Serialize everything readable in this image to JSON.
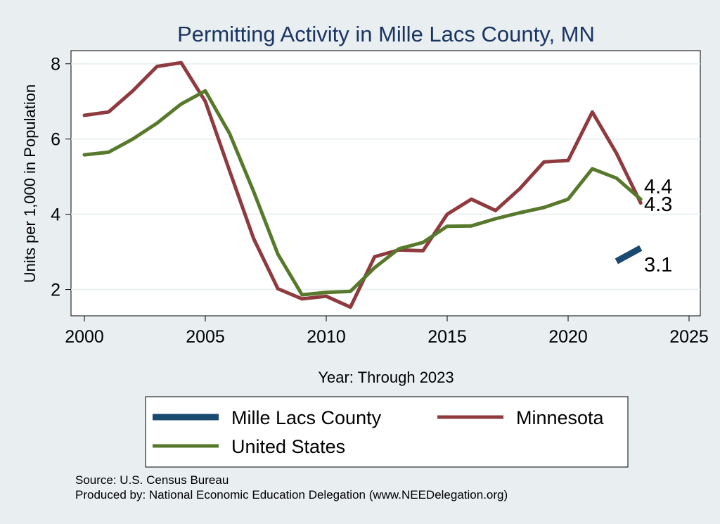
{
  "chart_data": {
    "type": "line",
    "title": "Permitting Activity in Mille Lacs County, MN",
    "xlabel": "Year: Through 2023",
    "ylabel": "Units per 1,000 in Population",
    "xlim": [
      2000,
      2025
    ],
    "ylim": [
      1.3,
      8.35
    ],
    "xticks": [
      "2000",
      "2005",
      "2010",
      "2015",
      "2020",
      "2025"
    ],
    "yticks": [
      "2",
      "4",
      "6",
      "8"
    ],
    "grid": true,
    "legend_position": "bottom",
    "series": [
      {
        "name": "Mille Lacs County",
        "color": "#1a4a72",
        "x": [
          2022,
          2023
        ],
        "values": [
          2.75,
          3.1
        ],
        "end_label": "3.1"
      },
      {
        "name": "Minnesota",
        "color": "#8f3a3e",
        "x": [
          2000,
          2001,
          2002,
          2003,
          2004,
          2005,
          2006,
          2007,
          2008,
          2009,
          2010,
          2011,
          2012,
          2013,
          2014,
          2015,
          2016,
          2017,
          2018,
          2019,
          2020,
          2021,
          2022,
          2023
        ],
        "values": [
          6.63,
          6.72,
          7.28,
          7.93,
          8.03,
          7.0,
          5.16,
          3.35,
          2.02,
          1.75,
          1.82,
          1.53,
          2.87,
          3.05,
          3.03,
          4.0,
          4.4,
          4.1,
          4.68,
          5.39,
          5.43,
          6.72,
          5.62,
          4.3
        ],
        "end_label": "4.3"
      },
      {
        "name": "United States",
        "color": "#57792c",
        "x": [
          2000,
          2001,
          2002,
          2003,
          2004,
          2005,
          2006,
          2007,
          2008,
          2009,
          2010,
          2011,
          2012,
          2013,
          2014,
          2015,
          2016,
          2017,
          2018,
          2019,
          2020,
          2021,
          2022,
          2023
        ],
        "values": [
          5.58,
          5.65,
          6.0,
          6.42,
          6.93,
          7.28,
          6.15,
          4.6,
          2.94,
          1.86,
          1.92,
          1.95,
          2.58,
          3.08,
          3.25,
          3.68,
          3.69,
          3.88,
          4.04,
          4.18,
          4.4,
          5.21,
          4.96,
          4.4
        ],
        "end_label": "4.4"
      }
    ],
    "notes": [
      "Source: U.S. Census Bureau",
      "Produced by: National Economic Education Delegation (www.NEEDelegation.org)"
    ]
  }
}
